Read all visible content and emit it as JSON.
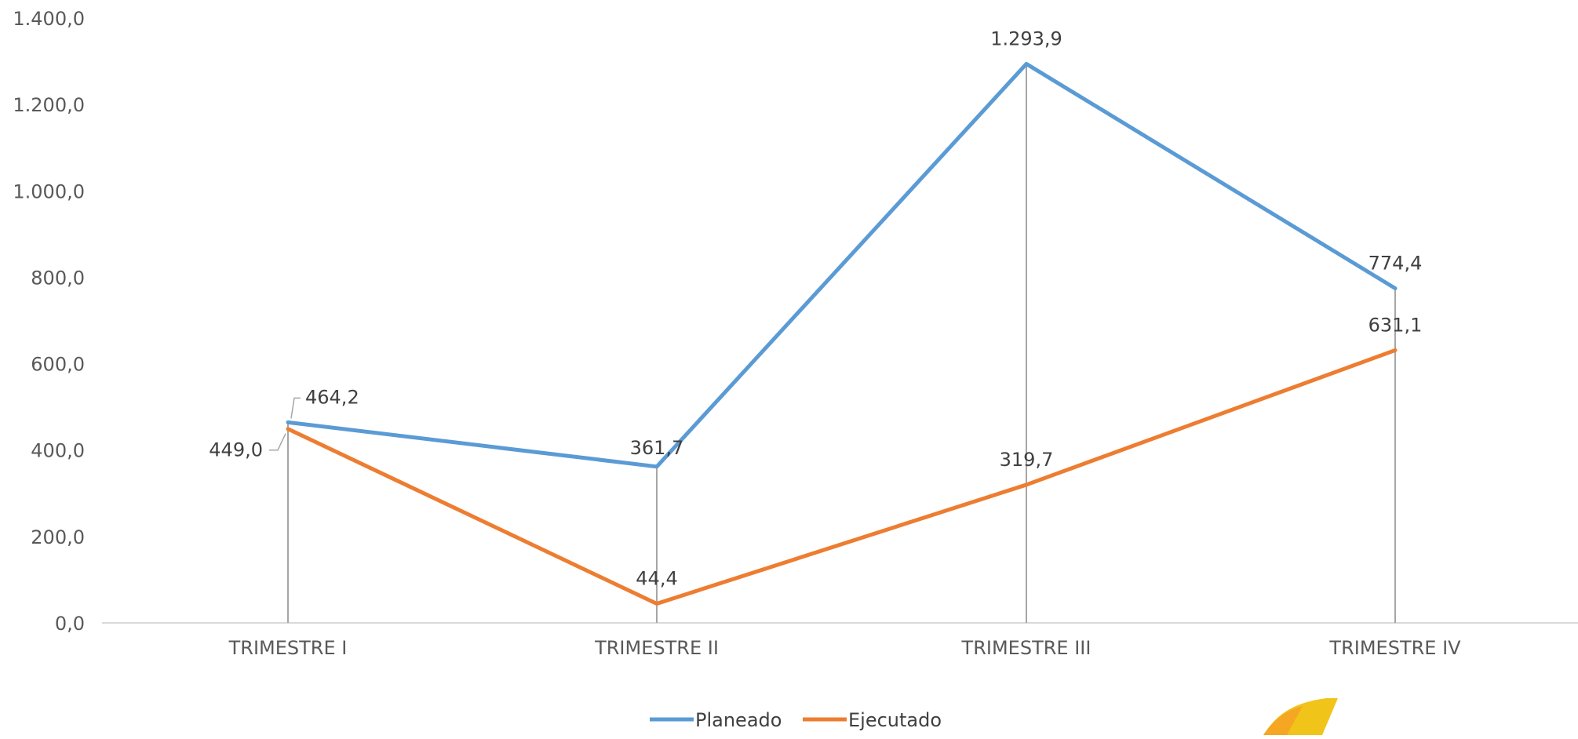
{
  "chart_data": {
    "type": "line",
    "categories": [
      "TRIMESTRE I",
      "TRIMESTRE II",
      "TRIMESTRE III",
      "TRIMESTRE IV"
    ],
    "series": [
      {
        "name": "Planeado",
        "color": "#5B9BD5",
        "values": [
          464.2,
          361.7,
          1293.9,
          774.4
        ],
        "labels": [
          "464,2",
          "361,7",
          "1.293,9",
          "774,4"
        ]
      },
      {
        "name": "Ejecutado",
        "color": "#ED7D31",
        "values": [
          449.0,
          44.4,
          319.7,
          631.1
        ],
        "labels": [
          "449,0",
          "44,4",
          "319,7",
          "631,1"
        ]
      }
    ],
    "ylim": [
      0,
      1400
    ],
    "yticks": [
      0,
      200,
      400,
      600,
      800,
      1000,
      1200,
      1400
    ],
    "ytick_labels": [
      "0,0",
      "200,0",
      "400,0",
      "600,0",
      "800,0",
      "1.000,0",
      "1.200,0",
      "1.400,0"
    ],
    "drop_lines": true,
    "legend_position": "bottom-center",
    "grid": false
  }
}
